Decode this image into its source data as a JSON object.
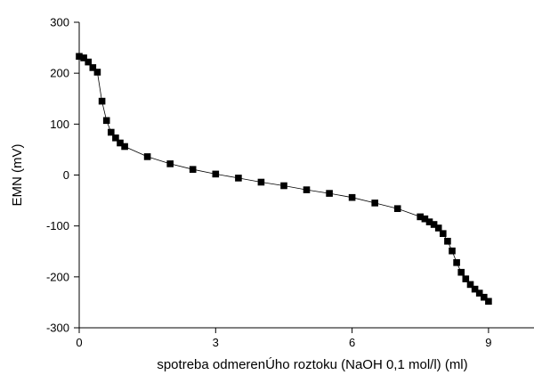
{
  "chart_data": {
    "type": "line",
    "title": "",
    "xlabel": "spotreba odmerenÚho roztoku (NaOH 0,1 mol/l) (ml)",
    "ylabel": "EMN (mV)",
    "xlim": [
      0,
      10
    ],
    "ylim": [
      -300,
      300
    ],
    "xticks": [
      0,
      3,
      6,
      9
    ],
    "yticks": [
      -300,
      -200,
      -100,
      0,
      100,
      200,
      300
    ],
    "grid": false,
    "legend": "none",
    "marker": "square",
    "color": "#000000",
    "series": [
      {
        "x": [
          0.0,
          0.1,
          0.2,
          0.3,
          0.4,
          0.5,
          0.6,
          0.7,
          0.8,
          0.9,
          1.0,
          1.5,
          2.0,
          2.5,
          3.0,
          3.5,
          4.0,
          4.5,
          5.0,
          5.5,
          6.0,
          6.5,
          7.0,
          7.5,
          7.6,
          7.7,
          7.8,
          7.9,
          8.0,
          8.1,
          8.2,
          8.3,
          8.4,
          8.5,
          8.6,
          8.7,
          8.8,
          8.9,
          9.0
        ],
        "y": [
          233,
          230,
          222,
          211,
          202,
          145,
          107,
          84,
          73,
          63,
          56,
          36,
          22,
          11,
          2,
          -6,
          -14,
          -21,
          -29,
          -36,
          -44,
          -55,
          -66,
          -82,
          -86,
          -92,
          -97,
          -104,
          -115,
          -130,
          -149,
          -172,
          -191,
          -204,
          -215,
          -224,
          -232,
          -240,
          -248
        ]
      }
    ]
  }
}
